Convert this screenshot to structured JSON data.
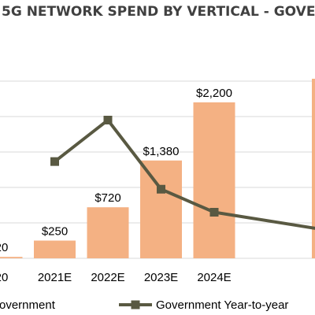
{
  "chart_data": {
    "type": "bar",
    "title": "5G NETWORK SPEND BY VERTICAL - GOVE",
    "categories": [
      "20",
      "2021E",
      "2022E",
      "2023E",
      "2024E"
    ],
    "series": [
      {
        "name": "overnment",
        "type": "bar",
        "values": [
          20,
          250,
          720,
          1380,
          2200
        ],
        "data_labels": [
          "20",
          "$250",
          "$720",
          "$1,380",
          "$2,200"
        ],
        "color": "#F4B183"
      },
      {
        "name": "Government Year-to-year",
        "type": "line",
        "values": [
          null,
          105,
          150,
          75,
          50
        ],
        "color": "#595942"
      }
    ],
    "ylim": [
      0,
      2600
    ],
    "line_ylim": [
      0,
      200
    ],
    "grid": true,
    "legend": "bottom"
  }
}
